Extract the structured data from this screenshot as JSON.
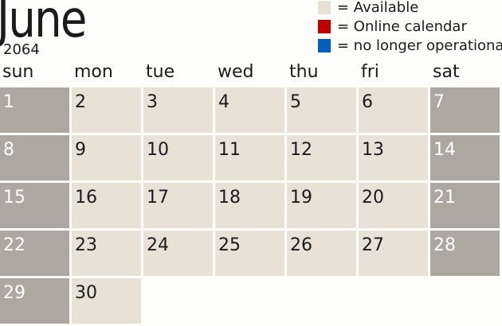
{
  "month": "June",
  "year": "2064",
  "legend": [
    {
      "label": "= Available",
      "color": "#e8e1d6"
    },
    {
      "label": "= Online calendar",
      "color": "#c00000"
    },
    {
      "label": "= no longer operational",
      "color": "#0060c0"
    }
  ],
  "weekdays": [
    "sun",
    "mon",
    "tue",
    "wed",
    "thu",
    "fri",
    "sat"
  ],
  "days": [
    1,
    2,
    3,
    4,
    5,
    6,
    7,
    8,
    9,
    10,
    11,
    12,
    13,
    14,
    15,
    16,
    17,
    18,
    19,
    20,
    21,
    22,
    23,
    24,
    25,
    26,
    27,
    28,
    29,
    30
  ],
  "first_weekday": 0,
  "colors": {
    "weekday": "#e8e1d6",
    "weekend": "#aca79f"
  }
}
